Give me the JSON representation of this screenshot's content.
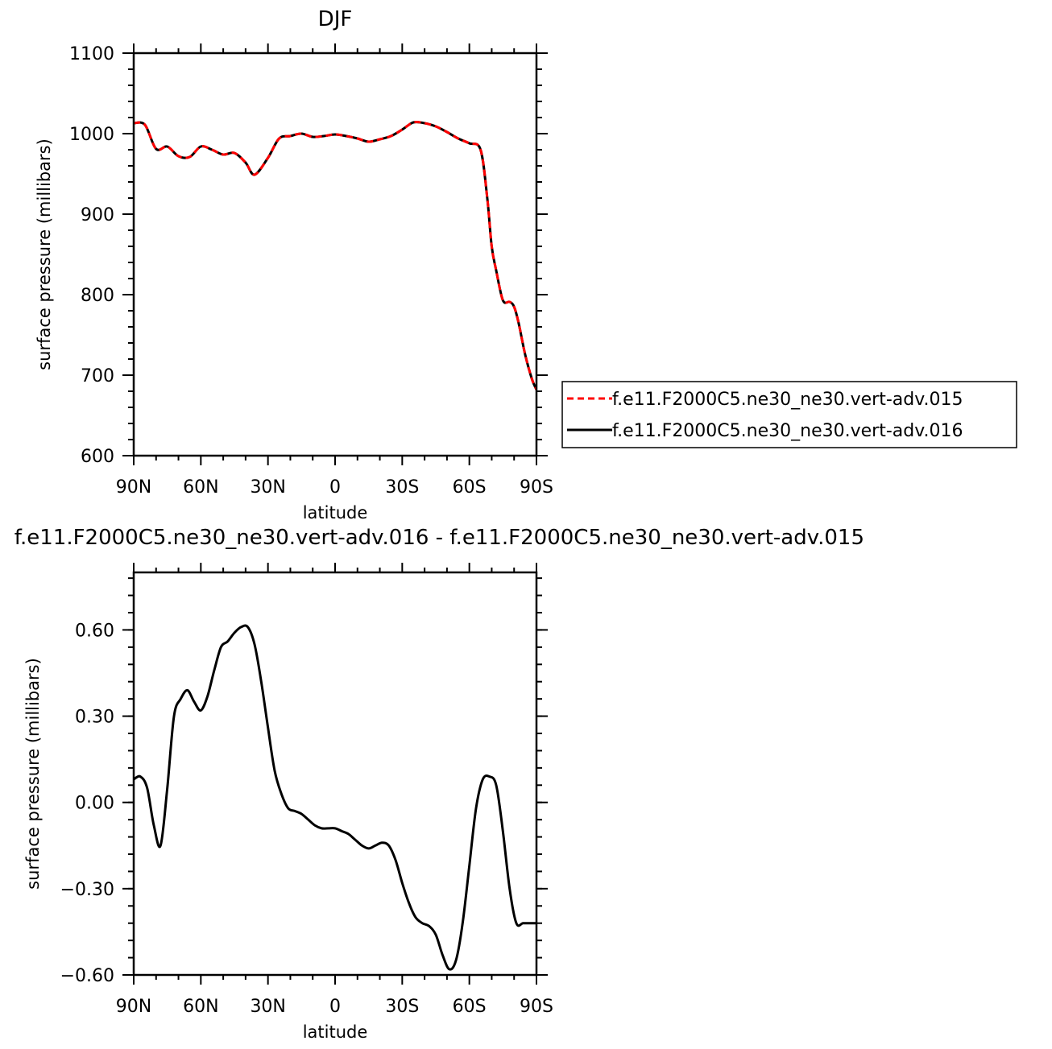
{
  "chart_data": [
    {
      "type": "line",
      "title": "DJF",
      "xlabel": "latitude",
      "ylabel": "surface pressure (millibars)",
      "xlim": [
        90,
        -90
      ],
      "ylim": [
        600,
        1100
      ],
      "x_ticks": [
        90,
        60,
        30,
        0,
        -30,
        -60,
        -90
      ],
      "x_tick_labels": [
        "90N",
        "60N",
        "30N",
        "0",
        "30S",
        "60S",
        "90S"
      ],
      "y_ticks": [
        600,
        700,
        800,
        900,
        1000,
        1100
      ],
      "y_tick_labels": [
        "600",
        "700",
        "800",
        "900",
        "1000",
        "1100"
      ],
      "grid": false,
      "legend_position": "right",
      "series": [
        {
          "name": "f.e11.F2000C5.ne30_ne30.vert-adv.015",
          "color": "#ff0000",
          "dash": "dashed",
          "x": [
            90,
            85,
            80,
            75,
            70,
            65,
            60,
            55,
            50,
            45,
            40,
            36,
            30,
            25,
            20,
            15,
            10,
            5,
            0,
            -5,
            -10,
            -15,
            -20,
            -25,
            -30,
            -35,
            -40,
            -45,
            -50,
            -55,
            -60,
            -65,
            -68,
            -70,
            -72,
            -75,
            -78,
            -80,
            -82,
            -85,
            -88,
            -90
          ],
          "y": [
            1013,
            1011,
            981,
            984,
            972,
            971,
            984,
            980,
            974,
            976,
            964,
            949,
            970,
            994,
            997,
            1000,
            996,
            997,
            999,
            997,
            994,
            990,
            993,
            997,
            1005,
            1014,
            1013,
            1009,
            1002,
            994,
            988,
            980,
            920,
            860,
            830,
            793,
            791,
            785,
            765,
            725,
            695,
            682
          ]
        },
        {
          "name": "f.e11.F2000C5.ne30_ne30.vert-adv.016",
          "color": "#000000",
          "dash": "solid",
          "x": [
            90,
            85,
            80,
            75,
            70,
            65,
            60,
            55,
            50,
            45,
            40,
            36,
            30,
            25,
            20,
            15,
            10,
            5,
            0,
            -5,
            -10,
            -15,
            -20,
            -25,
            -30,
            -35,
            -40,
            -45,
            -50,
            -55,
            -60,
            -65,
            -68,
            -70,
            -72,
            -75,
            -78,
            -80,
            -82,
            -85,
            -88,
            -90
          ],
          "y": [
            1013,
            1011,
            981,
            984,
            972,
            971,
            984,
            980,
            974,
            976,
            964,
            949,
            970,
            994,
            997,
            1000,
            996,
            997,
            999,
            997,
            994,
            990,
            993,
            997,
            1005,
            1014,
            1013,
            1009,
            1002,
            994,
            988,
            980,
            920,
            860,
            830,
            793,
            791,
            785,
            765,
            725,
            695,
            682
          ]
        }
      ]
    },
    {
      "type": "line",
      "title": "f.e11.F2000C5.ne30_ne30.vert-adv.016 - f.e11.F2000C5.ne30_ne30.vert-adv.015",
      "xlabel": "latitude",
      "ylabel": "surface pressure (millibars)",
      "xlim": [
        90,
        -90
      ],
      "ylim": [
        -0.6,
        0.8
      ],
      "x_ticks": [
        90,
        60,
        30,
        0,
        -30,
        -60,
        -90
      ],
      "x_tick_labels": [
        "90N",
        "60N",
        "30N",
        "0",
        "30S",
        "60S",
        "90S"
      ],
      "y_ticks": [
        -0.6,
        -0.3,
        0.0,
        0.3,
        0.6
      ],
      "y_tick_labels": [
        "−0.60",
        "−0.30",
        "0.00",
        "0.30",
        "0.60"
      ],
      "grid": false,
      "series": [
        {
          "color": "#000000",
          "dash": "solid",
          "x": [
            90,
            87,
            84,
            81,
            78,
            75,
            72,
            69,
            66,
            63,
            60,
            57,
            54,
            51,
            48,
            45,
            42,
            39,
            36,
            33,
            30,
            27,
            24,
            21,
            18,
            15,
            12,
            9,
            6,
            3,
            0,
            -3,
            -6,
            -9,
            -12,
            -15,
            -18,
            -21,
            -24,
            -27,
            -30,
            -33,
            -36,
            -39,
            -42,
            -45,
            -48,
            -51,
            -54,
            -57,
            -60,
            -63,
            -66,
            -69,
            -72,
            -75,
            -78,
            -81,
            -84,
            -87,
            -90
          ],
          "y": [
            0.08,
            0.09,
            0.05,
            -0.08,
            -0.15,
            0.05,
            0.3,
            0.36,
            0.39,
            0.35,
            0.32,
            0.37,
            0.46,
            0.54,
            0.56,
            0.59,
            0.61,
            0.61,
            0.55,
            0.42,
            0.26,
            0.11,
            0.03,
            -0.02,
            -0.03,
            -0.04,
            -0.06,
            -0.08,
            -0.09,
            -0.09,
            -0.09,
            -0.1,
            -0.11,
            -0.13,
            -0.15,
            -0.16,
            -0.15,
            -0.14,
            -0.15,
            -0.2,
            -0.28,
            -0.35,
            -0.4,
            -0.42,
            -0.43,
            -0.46,
            -0.53,
            -0.58,
            -0.55,
            -0.42,
            -0.22,
            -0.02,
            0.08,
            0.09,
            0.06,
            -0.1,
            -0.3,
            -0.42,
            -0.42,
            -0.42,
            -0.42
          ]
        }
      ]
    }
  ]
}
